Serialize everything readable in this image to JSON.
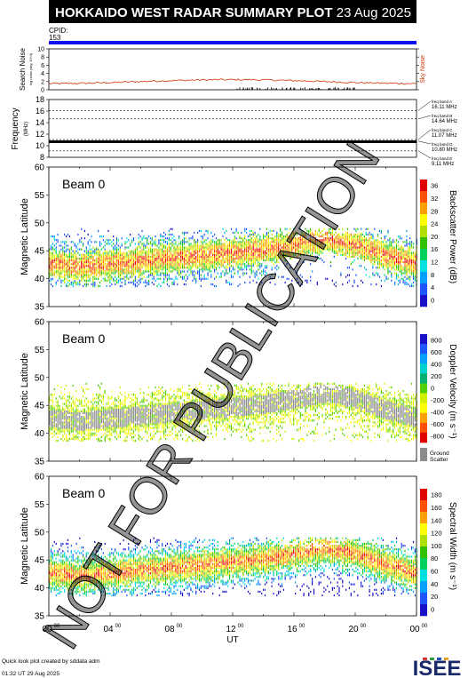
{
  "header": {
    "title": "HOKKAIDO WEST RADAR SUMMARY PLOT",
    "date": "23 Aug 2025",
    "cpid_label": "CPID:",
    "cpid_value": "153"
  },
  "noise_panel": {
    "ylabel": "Search Noise",
    "ylabel_sub": "log noise (sky, 10^4)",
    "right_label": "Sky Noise",
    "yticks": [
      "0",
      "2",
      "4",
      "6",
      "8",
      "10"
    ],
    "ylim": [
      0,
      10
    ]
  },
  "freq_panel": {
    "ylabel": "Frequency",
    "ylabel_sub": "(MHz)",
    "yticks": [
      "8",
      "10",
      "12",
      "14",
      "16",
      "18"
    ],
    "ylim": [
      8,
      18
    ],
    "bands": [
      {
        "name": "freq band A",
        "value": "16.11 MHz"
      },
      {
        "name": "freq band B",
        "value": "14.64 MHz"
      },
      {
        "name": "freq band C",
        "value": "11.07 MHz"
      },
      {
        "name": "freq band D",
        "value": "10.80 MHz"
      },
      {
        "name": "freq band E",
        "value": "9.11 MHz"
      }
    ]
  },
  "beam_label": "Beam  0",
  "lat_axis": {
    "label": "Magnetic Latitude",
    "ticks": [
      "35",
      "40",
      "45",
      "50",
      "55",
      "60"
    ],
    "range": [
      35,
      60
    ]
  },
  "x_axis": {
    "label": "UT",
    "ticks": [
      "00",
      "04",
      "08",
      "12",
      "16",
      "20",
      "00"
    ],
    "tick_sup": "00",
    "range": [
      0,
      24
    ]
  },
  "colorbars": [
    {
      "title": "Backscatter Power (dB)",
      "ticks": [
        "0",
        "4",
        "8",
        "12",
        "16",
        "20",
        "24",
        "28",
        "32",
        "36"
      ],
      "colors": [
        "#1a10c8",
        "#1d55ff",
        "#00a0ff",
        "#00e0e0",
        "#00d060",
        "#30c000",
        "#b0e000",
        "#ffff00",
        "#ffa000",
        "#ff5000",
        "#e00000"
      ]
    },
    {
      "title": "Doppler Velocity (m s⁻¹)",
      "ticks": [
        "-800",
        "-600",
        "-400",
        "-200",
        "0",
        "200",
        "400",
        "600",
        "800"
      ],
      "colors": [
        "#e00000",
        "#ff5000",
        "#ffa000",
        "#ffff00",
        "#d0f000",
        "#50d000",
        "#00b070",
        "#00d0d0",
        "#00a0ff",
        "#1d55ff",
        "#1a10c8"
      ],
      "extra": "Ground Scatter"
    },
    {
      "title": "Spectral Width (m s⁻¹)",
      "ticks": [
        "0",
        "20",
        "40",
        "60",
        "80",
        "100",
        "120",
        "140",
        "160",
        "180"
      ],
      "colors": [
        "#1a10c8",
        "#1d55ff",
        "#00a0ff",
        "#00e0e0",
        "#00d060",
        "#30c000",
        "#b0e000",
        "#ffff00",
        "#ffa000",
        "#ff5000",
        "#e00000"
      ]
    }
  ],
  "chart_data": {
    "type": "heatmap",
    "xlabel": "UT",
    "ylabel": "Magnetic Latitude",
    "xlim": [
      0,
      24
    ],
    "ylim": [
      35,
      60
    ],
    "scatter_band": {
      "ut": [
        0,
        2,
        4,
        6,
        8,
        10,
        12,
        14,
        16,
        18,
        20,
        22,
        24
      ],
      "center_lat": [
        42.5,
        42,
        42.5,
        43,
        43.5,
        44,
        44.5,
        45,
        46,
        47,
        46,
        44,
        42.5
      ],
      "max_lat": 49,
      "min_lat": 38.5
    },
    "noise_level": 2,
    "frequency_mhz": 10.8
  },
  "watermark": "NOT FOR PUBLICATION",
  "footer": {
    "line1": "Quick look plot created by sddata adm",
    "line2": "01:32 UT 29 Aug 2025",
    "logo": "ISEE"
  },
  "colors": {
    "cpid_bar": "#1010ee",
    "noise_line": "#cc3300",
    "ground_scatter": "#8c8c8c",
    "watermark": "#000000"
  }
}
